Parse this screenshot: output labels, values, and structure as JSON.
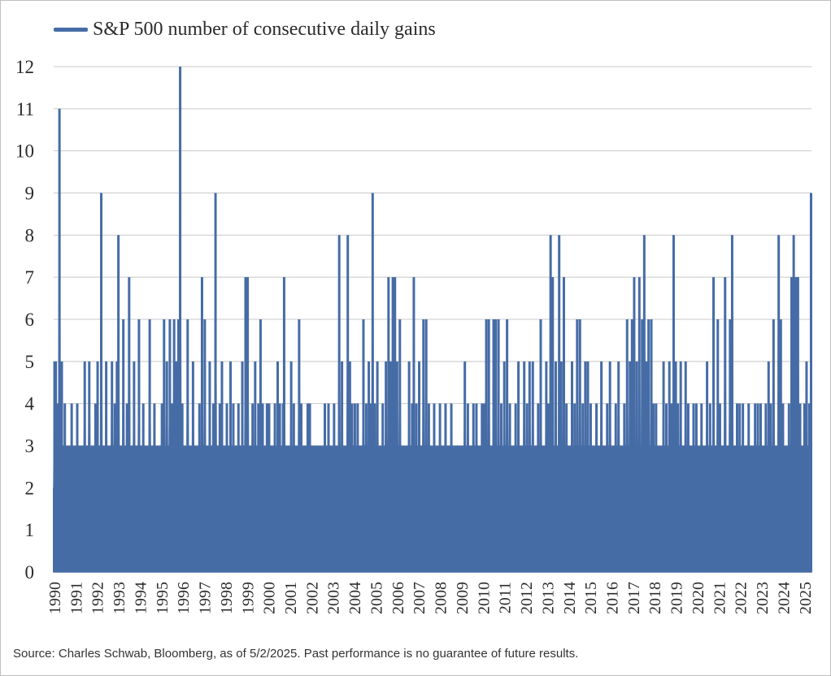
{
  "chart_data": {
    "type": "area",
    "series": [
      {
        "name": "S&P 500 number of consecutive daily gains",
        "color": "#466ca6",
        "values": [
          [
            1990.02,
            2
          ],
          [
            1990.04,
            5
          ],
          [
            1990.07,
            3
          ],
          [
            1990.1,
            5
          ],
          [
            1990.16,
            4
          ],
          [
            1990.21,
            2
          ],
          [
            1990.27,
            11
          ],
          [
            1990.32,
            3
          ],
          [
            1990.38,
            5
          ],
          [
            1990.45,
            2
          ],
          [
            1990.52,
            4
          ],
          [
            1990.6,
            3
          ],
          [
            1990.72,
            2
          ],
          [
            1990.84,
            4
          ],
          [
            1991.0,
            3
          ],
          [
            1991.1,
            4
          ],
          [
            1991.22,
            2
          ],
          [
            1991.36,
            3
          ],
          [
            1991.45,
            5
          ],
          [
            1991.55,
            3
          ],
          [
            1991.66,
            5
          ],
          [
            1991.8,
            2
          ],
          [
            1991.95,
            4
          ],
          [
            1992.05,
            5
          ],
          [
            1992.18,
            2
          ],
          [
            1992.22,
            9
          ],
          [
            1992.32,
            3
          ],
          [
            1992.45,
            5
          ],
          [
            1992.58,
            3
          ],
          [
            1992.72,
            5
          ],
          [
            1992.85,
            4
          ],
          [
            1992.95,
            5
          ],
          [
            1993.02,
            8
          ],
          [
            1993.12,
            3
          ],
          [
            1993.25,
            6
          ],
          [
            1993.42,
            4
          ],
          [
            1993.52,
            7
          ],
          [
            1993.62,
            3
          ],
          [
            1993.75,
            5
          ],
          [
            1993.88,
            3
          ],
          [
            1993.98,
            6
          ],
          [
            1994.1,
            3
          ],
          [
            1994.18,
            4
          ],
          [
            1994.3,
            2
          ],
          [
            1994.48,
            6
          ],
          [
            1994.58,
            3
          ],
          [
            1994.7,
            4
          ],
          [
            1994.85,
            3
          ],
          [
            1995.05,
            4
          ],
          [
            1995.15,
            6
          ],
          [
            1995.28,
            5
          ],
          [
            1995.42,
            6
          ],
          [
            1995.52,
            4
          ],
          [
            1995.62,
            6
          ],
          [
            1995.72,
            5
          ],
          [
            1995.82,
            6
          ],
          [
            1995.9,
            12
          ],
          [
            1996.0,
            4
          ],
          [
            1996.12,
            3
          ],
          [
            1996.25,
            6
          ],
          [
            1996.38,
            3
          ],
          [
            1996.5,
            5
          ],
          [
            1996.62,
            3
          ],
          [
            1996.8,
            4
          ],
          [
            1996.92,
            7
          ],
          [
            1997.05,
            6
          ],
          [
            1997.15,
            3
          ],
          [
            1997.28,
            5
          ],
          [
            1997.45,
            4
          ],
          [
            1997.55,
            9
          ],
          [
            1997.65,
            3
          ],
          [
            1997.75,
            4
          ],
          [
            1997.85,
            5
          ],
          [
            1997.98,
            3
          ],
          [
            1998.08,
            4
          ],
          [
            1998.25,
            5
          ],
          [
            1998.38,
            4
          ],
          [
            1998.5,
            3
          ],
          [
            1998.62,
            4
          ],
          [
            1998.8,
            5
          ],
          [
            1998.95,
            7
          ],
          [
            1999.05,
            7
          ],
          [
            1999.15,
            3
          ],
          [
            1999.28,
            4
          ],
          [
            1999.4,
            5
          ],
          [
            1999.55,
            4
          ],
          [
            1999.65,
            6
          ],
          [
            1999.75,
            4
          ],
          [
            1999.85,
            3
          ],
          [
            1999.95,
            4
          ],
          [
            2000.05,
            4
          ],
          [
            2000.2,
            2
          ],
          [
            2000.32,
            4
          ],
          [
            2000.45,
            5
          ],
          [
            2000.55,
            4
          ],
          [
            2000.7,
            4
          ],
          [
            2000.75,
            7
          ],
          [
            2000.85,
            2
          ],
          [
            2000.95,
            3
          ],
          [
            2001.08,
            5
          ],
          [
            2001.2,
            4
          ],
          [
            2001.32,
            3
          ],
          [
            2001.45,
            6
          ],
          [
            2001.55,
            4
          ],
          [
            2001.65,
            3
          ],
          [
            2001.75,
            2
          ],
          [
            2001.85,
            4
          ],
          [
            2001.95,
            4
          ],
          [
            2002.08,
            2
          ],
          [
            2002.2,
            3
          ],
          [
            2002.35,
            3
          ],
          [
            2002.5,
            2
          ],
          [
            2002.65,
            4
          ],
          [
            2002.82,
            4
          ],
          [
            2002.95,
            3
          ],
          [
            2003.08,
            4
          ],
          [
            2003.22,
            3
          ],
          [
            2003.32,
            8
          ],
          [
            2003.45,
            5
          ],
          [
            2003.55,
            3
          ],
          [
            2003.72,
            8
          ],
          [
            2003.82,
            5
          ],
          [
            2003.92,
            4
          ],
          [
            2004.05,
            4
          ],
          [
            2004.18,
            4
          ],
          [
            2004.3,
            3
          ],
          [
            2004.45,
            6
          ],
          [
            2004.58,
            4
          ],
          [
            2004.7,
            5
          ],
          [
            2004.8,
            4
          ],
          [
            2004.88,
            9
          ],
          [
            2004.98,
            4
          ],
          [
            2005.1,
            5
          ],
          [
            2005.2,
            3
          ],
          [
            2005.35,
            4
          ],
          [
            2005.5,
            5
          ],
          [
            2005.62,
            7
          ],
          [
            2005.72,
            5
          ],
          [
            2005.82,
            7
          ],
          [
            2005.92,
            7
          ],
          [
            2006.02,
            5
          ],
          [
            2006.15,
            6
          ],
          [
            2006.3,
            3
          ],
          [
            2006.45,
            3
          ],
          [
            2006.58,
            5
          ],
          [
            2006.72,
            4
          ],
          [
            2006.8,
            7
          ],
          [
            2006.92,
            4
          ],
          [
            2007.05,
            5
          ],
          [
            2007.15,
            3
          ],
          [
            2007.25,
            6
          ],
          [
            2007.38,
            6
          ],
          [
            2007.5,
            4
          ],
          [
            2007.62,
            2
          ],
          [
            2007.75,
            4
          ],
          [
            2007.88,
            3
          ],
          [
            2008.02,
            4
          ],
          [
            2008.15,
            2
          ],
          [
            2008.28,
            4
          ],
          [
            2008.42,
            3
          ],
          [
            2008.55,
            4
          ],
          [
            2008.68,
            2
          ],
          [
            2008.8,
            3
          ],
          [
            2008.95,
            3
          ],
          [
            2009.05,
            2
          ],
          [
            2009.18,
            5
          ],
          [
            2009.32,
            4
          ],
          [
            2009.45,
            3
          ],
          [
            2009.58,
            4
          ],
          [
            2009.72,
            4
          ],
          [
            2009.85,
            3
          ],
          [
            2009.98,
            4
          ],
          [
            2010.08,
            4
          ],
          [
            2010.18,
            6
          ],
          [
            2010.3,
            6
          ],
          [
            2010.42,
            2
          ],
          [
            2010.52,
            6
          ],
          [
            2010.62,
            6
          ],
          [
            2010.75,
            6
          ],
          [
            2010.88,
            4
          ],
          [
            2011.02,
            5
          ],
          [
            2011.15,
            6
          ],
          [
            2011.28,
            4
          ],
          [
            2011.4,
            3
          ],
          [
            2011.55,
            4
          ],
          [
            2011.68,
            5
          ],
          [
            2011.82,
            3
          ],
          [
            2011.95,
            5
          ],
          [
            2012.08,
            4
          ],
          [
            2012.2,
            5
          ],
          [
            2012.35,
            5
          ],
          [
            2012.48,
            3
          ],
          [
            2012.6,
            4
          ],
          [
            2012.72,
            6
          ],
          [
            2012.85,
            3
          ],
          [
            2012.98,
            5
          ],
          [
            2013.08,
            4
          ],
          [
            2013.18,
            8
          ],
          [
            2013.28,
            7
          ],
          [
            2013.42,
            5
          ],
          [
            2013.58,
            8
          ],
          [
            2013.68,
            5
          ],
          [
            2013.8,
            7
          ],
          [
            2013.92,
            4
          ],
          [
            2014.05,
            3
          ],
          [
            2014.18,
            5
          ],
          [
            2014.3,
            4
          ],
          [
            2014.42,
            6
          ],
          [
            2014.55,
            6
          ],
          [
            2014.68,
            4
          ],
          [
            2014.8,
            5
          ],
          [
            2014.92,
            5
          ],
          [
            2015.05,
            4
          ],
          [
            2015.18,
            3
          ],
          [
            2015.32,
            4
          ],
          [
            2015.45,
            3
          ],
          [
            2015.55,
            5
          ],
          [
            2015.7,
            2
          ],
          [
            2015.82,
            4
          ],
          [
            2015.95,
            5
          ],
          [
            2016.08,
            3
          ],
          [
            2016.22,
            4
          ],
          [
            2016.35,
            5
          ],
          [
            2016.48,
            3
          ],
          [
            2016.62,
            4
          ],
          [
            2016.75,
            6
          ],
          [
            2016.88,
            5
          ],
          [
            2016.98,
            6
          ],
          [
            2017.08,
            7
          ],
          [
            2017.2,
            5
          ],
          [
            2017.32,
            7
          ],
          [
            2017.45,
            6
          ],
          [
            2017.55,
            8
          ],
          [
            2017.65,
            5
          ],
          [
            2017.75,
            6
          ],
          [
            2017.88,
            6
          ],
          [
            2017.98,
            4
          ],
          [
            2018.1,
            4
          ],
          [
            2018.2,
            2
          ],
          [
            2018.32,
            3
          ],
          [
            2018.45,
            5
          ],
          [
            2018.58,
            4
          ],
          [
            2018.72,
            5
          ],
          [
            2018.82,
            4
          ],
          [
            2018.92,
            8
          ],
          [
            2019.02,
            5
          ],
          [
            2019.12,
            4
          ],
          [
            2019.25,
            5
          ],
          [
            2019.35,
            3
          ],
          [
            2019.48,
            5
          ],
          [
            2019.6,
            4
          ],
          [
            2019.72,
            3
          ],
          [
            2019.85,
            4
          ],
          [
            2019.98,
            4
          ],
          [
            2020.1,
            2
          ],
          [
            2020.22,
            4
          ],
          [
            2020.35,
            3
          ],
          [
            2020.48,
            5
          ],
          [
            2020.62,
            4
          ],
          [
            2020.78,
            7
          ],
          [
            2020.88,
            3
          ],
          [
            2020.98,
            6
          ],
          [
            2021.08,
            4
          ],
          [
            2021.2,
            3
          ],
          [
            2021.32,
            7
          ],
          [
            2021.45,
            3
          ],
          [
            2021.55,
            6
          ],
          [
            2021.65,
            8
          ],
          [
            2021.75,
            3
          ],
          [
            2021.88,
            4
          ],
          [
            2022.0,
            4
          ],
          [
            2022.15,
            4
          ],
          [
            2022.28,
            3
          ],
          [
            2022.42,
            4
          ],
          [
            2022.58,
            3
          ],
          [
            2022.72,
            4
          ],
          [
            2022.85,
            4
          ],
          [
            2022.98,
            4
          ],
          [
            2023.1,
            3
          ],
          [
            2023.22,
            4
          ],
          [
            2023.35,
            5
          ],
          [
            2023.45,
            4
          ],
          [
            2023.58,
            6
          ],
          [
            2023.7,
            3
          ],
          [
            2023.82,
            8
          ],
          [
            2023.92,
            6
          ],
          [
            2024.02,
            4
          ],
          [
            2024.15,
            3
          ],
          [
            2024.3,
            4
          ],
          [
            2024.42,
            7
          ],
          [
            2024.52,
            8
          ],
          [
            2024.62,
            7
          ],
          [
            2024.72,
            7
          ],
          [
            2024.82,
            4
          ],
          [
            2024.92,
            3
          ],
          [
            2025.02,
            4
          ],
          [
            2025.12,
            5
          ],
          [
            2025.25,
            4
          ],
          [
            2025.33,
            9
          ]
        ]
      }
    ],
    "x_tick_labels": [
      "1990",
      "1991",
      "1992",
      "1993",
      "1994",
      "1995",
      "1996",
      "1997",
      "1998",
      "1999",
      "2000",
      "2001",
      "2002",
      "2003",
      "2004",
      "2005",
      "2006",
      "2007",
      "2008",
      "2009",
      "2010",
      "2011",
      "2012",
      "2013",
      "2014",
      "2015",
      "2016",
      "2017",
      "2018",
      "2019",
      "2020",
      "2021",
      "2022",
      "2023",
      "2024",
      "2025"
    ],
    "y_tick_labels": [
      "0",
      "1",
      "2",
      "3",
      "4",
      "5",
      "6",
      "7",
      "8",
      "9",
      "10",
      "11",
      "12"
    ],
    "xlim": [
      1990,
      2025.35
    ],
    "ylim": [
      0,
      12
    ],
    "grid": "horizontal",
    "legend_position": "top-left",
    "source_note": "Source: Charles Schwab, Bloomberg, as of 5/2/2025.  Past performance is no guarantee of future results."
  }
}
